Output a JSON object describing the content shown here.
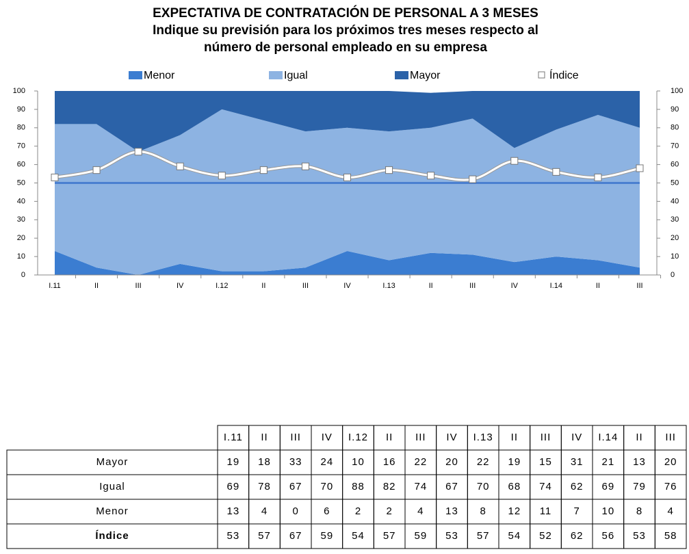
{
  "chart_data": {
    "type": "area",
    "title": "EXPECTATIVA DE CONTRATACIÓN DE PERSONAL A 3 MESES",
    "subtitle": [
      "Indique su previsión para los próximos tres meses respecto al",
      "número de personal empleado en su empresa"
    ],
    "categories": [
      "I.11",
      "II",
      "III",
      "IV",
      "I.12",
      "II",
      "III",
      "IV",
      "I.13",
      "II",
      "III",
      "IV",
      "I.14",
      "II",
      "III"
    ],
    "series": [
      {
        "name": "Menor",
        "color": "#3b7dd1",
        "values": [
          13,
          4,
          0,
          6,
          2,
          2,
          4,
          13,
          8,
          12,
          11,
          7,
          10,
          8,
          4
        ]
      },
      {
        "name": "Igual",
        "color": "#8db3e2",
        "values": [
          69,
          78,
          67,
          70,
          88,
          82,
          74,
          67,
          70,
          68,
          74,
          62,
          69,
          79,
          76
        ]
      },
      {
        "name": "Mayor",
        "color": "#2b62a8",
        "values": [
          19,
          18,
          33,
          24,
          10,
          16,
          22,
          20,
          22,
          19,
          15,
          31,
          21,
          13,
          20
        ]
      },
      {
        "name": "Índice",
        "type": "line",
        "color": "#ffffff",
        "values": [
          53,
          57,
          67,
          59,
          54,
          57,
          59,
          53,
          57,
          54,
          52,
          62,
          56,
          53,
          58
        ]
      }
    ],
    "reference_line": {
      "value": 50,
      "color": "#4a7fd0"
    },
    "ylim": [
      0,
      100
    ],
    "yticks": [
      0,
      10,
      20,
      30,
      40,
      50,
      60,
      70,
      80,
      90,
      100
    ],
    "table_order": [
      2,
      1,
      0,
      3
    ]
  }
}
